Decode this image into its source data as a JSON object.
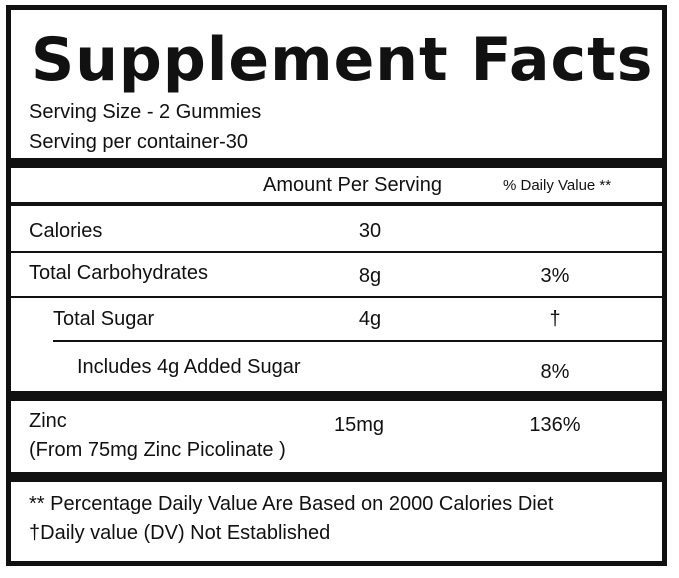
{
  "title": "Supplement Facts",
  "serving_size": "Serving Size - 2 Gummies",
  "servings_per_container": "Serving per container-30",
  "header": {
    "amount": "Amount Per Serving",
    "daily_value": "% Daily Value **"
  },
  "rows": [
    {
      "name": "Calories",
      "amount": "30",
      "dv": ""
    },
    {
      "name": "Total Carbohydrates",
      "amount": "8g",
      "dv": "3%"
    },
    {
      "name": "Total Sugar",
      "amount": "4g",
      "dv": "†"
    },
    {
      "name": "Includes 4g Added Sugar",
      "amount": "",
      "dv": "8%"
    }
  ],
  "zinc": {
    "name": "Zinc",
    "source": "(From 75mg Zinc Picolinate )",
    "amount": "15mg",
    "dv": "136%"
  },
  "footnotes": [
    "** Percentage Daily Value Are Based on 2000 Calories Diet",
    "†Daily value (DV) Not Established"
  ]
}
